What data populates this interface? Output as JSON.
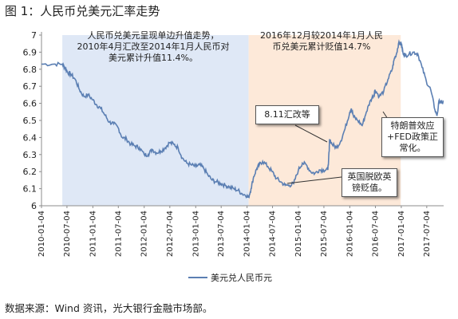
{
  "figure_title": "图 1：人民币兑美元汇率走势",
  "source_note": "数据来源：Wind 资讯，光大银行金融市场部。",
  "chart_data": {
    "type": "line",
    "title": "",
    "xlabel": "",
    "ylabel": "",
    "ylim": [
      6,
      7
    ],
    "yticks": [
      "6",
      "6.1",
      "6.2",
      "6.3",
      "6.4",
      "6.5",
      "6.6",
      "6.7",
      "6.8",
      "6.9",
      "7"
    ],
    "xlim": [
      "2010-01-04",
      "2017-11-01"
    ],
    "xticks": [
      "2010-01-04",
      "2010-07-04",
      "2011-01-04",
      "2011-07-04",
      "2012-01-04",
      "2012-07-04",
      "2013-01-04",
      "2013-07-04",
      "2014-01-04",
      "2014-07-04",
      "2015-01-04",
      "2015-07-04",
      "2016-01-04",
      "2016-07-04",
      "2017-01-04",
      "2017-07-04"
    ],
    "grid": false,
    "legend": "bottom",
    "line_color": "#5b7fb3",
    "shaded_regions": [
      {
        "from": "2010-06-01",
        "to": "2014-01-15",
        "color": "#dfe8f6"
      },
      {
        "from": "2014-01-15",
        "to": "2016-12-31",
        "color": "#fde9d9"
      }
    ],
    "series": [
      {
        "name": "美元兑人民币元",
        "x": [
          "2010-01-04",
          "2010-04-01",
          "2010-06-01",
          "2010-06-20",
          "2010-07-10",
          "2010-08-01",
          "2010-09-01",
          "2010-10-01",
          "2010-11-01",
          "2010-12-01",
          "2011-01-04",
          "2011-02-01",
          "2011-03-01",
          "2011-04-01",
          "2011-05-01",
          "2011-06-01",
          "2011-07-01",
          "2011-08-01",
          "2011-09-01",
          "2011-10-01",
          "2011-11-01",
          "2011-12-01",
          "2012-01-04",
          "2012-02-01",
          "2012-03-01",
          "2012-04-01",
          "2012-05-01",
          "2012-06-01",
          "2012-07-01",
          "2012-08-01",
          "2012-09-01",
          "2012-10-01",
          "2012-11-01",
          "2012-12-01",
          "2013-01-04",
          "2013-02-01",
          "2013-03-01",
          "2013-04-01",
          "2013-05-01",
          "2013-06-01",
          "2013-07-01",
          "2013-08-01",
          "2013-09-01",
          "2013-10-01",
          "2013-11-01",
          "2013-12-01",
          "2014-01-04",
          "2014-01-15",
          "2014-02-01",
          "2014-02-20",
          "2014-03-15",
          "2014-04-01",
          "2014-04-25",
          "2014-06-01",
          "2014-07-01",
          "2014-08-01",
          "2014-09-01",
          "2014-10-01",
          "2014-11-01",
          "2014-12-01",
          "2015-01-04",
          "2015-02-01",
          "2015-03-01",
          "2015-04-01",
          "2015-05-01",
          "2015-06-01",
          "2015-07-01",
          "2015-08-01",
          "2015-08-11",
          "2015-08-13",
          "2015-09-01",
          "2015-10-01",
          "2015-11-01",
          "2015-12-01",
          "2016-01-04",
          "2016-01-15",
          "2016-02-01",
          "2016-03-01",
          "2016-04-01",
          "2016-05-01",
          "2016-06-01",
          "2016-06-24",
          "2016-07-01",
          "2016-08-01",
          "2016-09-01",
          "2016-10-01",
          "2016-11-01",
          "2016-11-15",
          "2016-12-01",
          "2016-12-15",
          "2017-01-04",
          "2017-01-15",
          "2017-02-01",
          "2017-03-01",
          "2017-04-01",
          "2017-05-01",
          "2017-06-01",
          "2017-07-01",
          "2017-08-01",
          "2017-09-01",
          "2017-09-15",
          "2017-10-01",
          "2017-10-20",
          "2017-11-01"
        ],
        "y": [
          6.83,
          6.83,
          6.83,
          6.81,
          6.78,
          6.77,
          6.74,
          6.68,
          6.64,
          6.65,
          6.62,
          6.59,
          6.57,
          6.53,
          6.49,
          6.48,
          6.46,
          6.4,
          6.39,
          6.36,
          6.35,
          6.34,
          6.3,
          6.3,
          6.33,
          6.31,
          6.32,
          6.34,
          6.37,
          6.36,
          6.34,
          6.28,
          6.25,
          6.24,
          6.23,
          6.24,
          6.22,
          6.18,
          6.15,
          6.14,
          6.13,
          6.12,
          6.11,
          6.1,
          6.09,
          6.07,
          6.06,
          6.05,
          6.1,
          6.17,
          6.22,
          6.24,
          6.26,
          6.23,
          6.2,
          6.16,
          6.14,
          6.12,
          6.12,
          6.13,
          6.21,
          6.25,
          6.24,
          6.2,
          6.19,
          6.21,
          6.21,
          6.21,
          6.32,
          6.39,
          6.36,
          6.34,
          6.38,
          6.45,
          6.55,
          6.57,
          6.52,
          6.5,
          6.47,
          6.55,
          6.62,
          6.65,
          6.68,
          6.64,
          6.67,
          6.74,
          6.8,
          6.86,
          6.89,
          6.95,
          6.95,
          6.9,
          6.88,
          6.89,
          6.9,
          6.89,
          6.81,
          6.73,
          6.68,
          6.56,
          6.53,
          6.62,
          6.6,
          6.61
        ]
      }
    ]
  },
  "annotations": {
    "region_left": "人民币兑美元呈现单边升值走势，\n2010年4月汇改至2014年1月人民币对\n美元累计升值11.4%。",
    "region_right": "2016年12月较2014年1月人民\n币兑美元累计贬值14.7%",
    "callout_811": "8.11汇改等",
    "callout_brexit": "英国脱欧英\n镑贬值。",
    "callout_trump": "特朗普效应\n+FED政策正\n常化。"
  }
}
